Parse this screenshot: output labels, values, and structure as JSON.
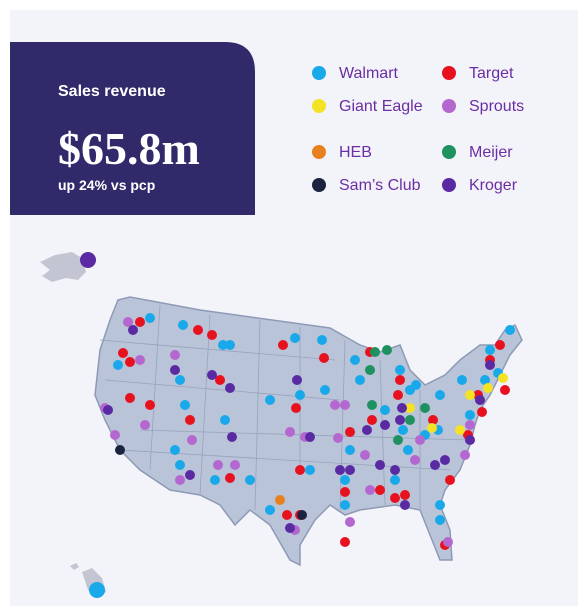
{
  "header": {
    "title": "Sales revenue",
    "value": "$65.8m",
    "subtitle": "up 24% vs pcp"
  },
  "legend": [
    {
      "name": "Walmart",
      "color": "#19a9ea"
    },
    {
      "name": "Target",
      "color": "#e8121f"
    },
    {
      "name": "Giant Eagle",
      "color": "#f4e224"
    },
    {
      "name": "Sprouts",
      "color": "#b468cf"
    },
    {
      "name": "HEB",
      "color": "#e8801e"
    },
    {
      "name": "Meijer",
      "color": "#1f9160"
    },
    {
      "name": "Sam’s Club",
      "color": "#1b2340"
    },
    {
      "name": "Kroger",
      "color": "#5a2aa3"
    }
  ]
}
